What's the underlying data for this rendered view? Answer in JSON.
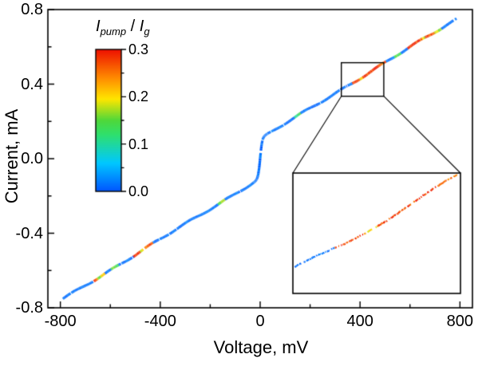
{
  "chart_data": {
    "type": "line",
    "title": "",
    "xlabel": "Voltage, mV",
    "ylabel": "Current, mA",
    "xlim": [
      -850,
      850
    ],
    "ylim": [
      -0.8,
      0.8
    ],
    "x_ticks": [
      -800,
      -400,
      0,
      400,
      800
    ],
    "x_tick_labels": [
      "-800",
      "-400",
      "0",
      "400",
      "800"
    ],
    "x_minor_step": 200,
    "y_ticks": [
      -0.8,
      -0.4,
      0.0,
      0.4,
      0.8
    ],
    "y_tick_labels": [
      "-0.8",
      "-0.4",
      "0.0",
      "0.4",
      "0.8"
    ],
    "y_minor_step": 0.2,
    "grid": false,
    "legend_position": "none",
    "curve_model": {
      "type": "linear_plus_zero_bias_step",
      "slope_mA_per_mV": 0.00082,
      "step_amplitude_mA": 0.105,
      "step_width_mV": 8,
      "v_range_mV": [
        -790,
        788
      ]
    },
    "zero_bias_step": {
      "from_mA": -0.1,
      "to_mA": 0.1,
      "at_mV": 0
    },
    "sample_points": [
      [
        -790,
        -0.753
      ],
      [
        -700,
        -0.679
      ],
      [
        -600,
        -0.597
      ],
      [
        -500,
        -0.515
      ],
      [
        -400,
        -0.433
      ],
      [
        -300,
        -0.351
      ],
      [
        -200,
        -0.269
      ],
      [
        -100,
        -0.187
      ],
      [
        -30,
        -0.13
      ],
      [
        -10,
        -0.096
      ],
      [
        0,
        0.0
      ],
      [
        10,
        0.096
      ],
      [
        30,
        0.13
      ],
      [
        100,
        0.187
      ],
      [
        200,
        0.269
      ],
      [
        300,
        0.351
      ],
      [
        400,
        0.433
      ],
      [
        500,
        0.515
      ],
      [
        600,
        0.597
      ],
      [
        700,
        0.679
      ],
      [
        788,
        0.751
      ]
    ],
    "color_scale": {
      "quantity": "I_pump / I_g",
      "min": 0.0,
      "max": 0.3,
      "stops": [
        [
          0.0,
          "#0055ff"
        ],
        [
          0.2,
          "#00c8ff"
        ],
        [
          0.4,
          "#2fe06c"
        ],
        [
          0.5,
          "#4fd83a"
        ],
        [
          0.65,
          "#ffe600"
        ],
        [
          0.8,
          "#ff8a00"
        ],
        [
          1.0,
          "#ee1000"
        ]
      ]
    },
    "colorbar": {
      "ticks": [
        0.0,
        0.1,
        0.2,
        0.3
      ],
      "tick_labels": [
        "0.0",
        "0.1",
        "0.2",
        "0.3"
      ],
      "title": {
        "sym1": "I",
        "sub1": "pump",
        "sep": " / ",
        "sym2": "I",
        "sub2": "g"
      }
    },
    "default_ratio": 0.015,
    "ratio_segments": [
      [
        -668,
        -652,
        0.26
      ],
      [
        -652,
        -640,
        0.14
      ],
      [
        -640,
        -622,
        0.21
      ],
      [
        -596,
        -566,
        0.14
      ],
      [
        -508,
        -480,
        0.28
      ],
      [
        -480,
        -466,
        0.19
      ],
      [
        -466,
        -428,
        0.27
      ],
      [
        -168,
        -142,
        0.16
      ],
      [
        138,
        162,
        0.12
      ],
      [
        368,
        398,
        0.28
      ],
      [
        398,
        410,
        0.2
      ],
      [
        410,
        472,
        0.28
      ],
      [
        472,
        504,
        0.26
      ],
      [
        536,
        564,
        0.15
      ],
      [
        590,
        648,
        0.28
      ],
      [
        648,
        660,
        0.18
      ],
      [
        660,
        700,
        0.27
      ],
      [
        700,
        726,
        0.16
      ]
    ],
    "zoom": {
      "v_range_mV": [
        325,
        495
      ],
      "i_range_mA": [
        0.335,
        0.515
      ]
    }
  }
}
